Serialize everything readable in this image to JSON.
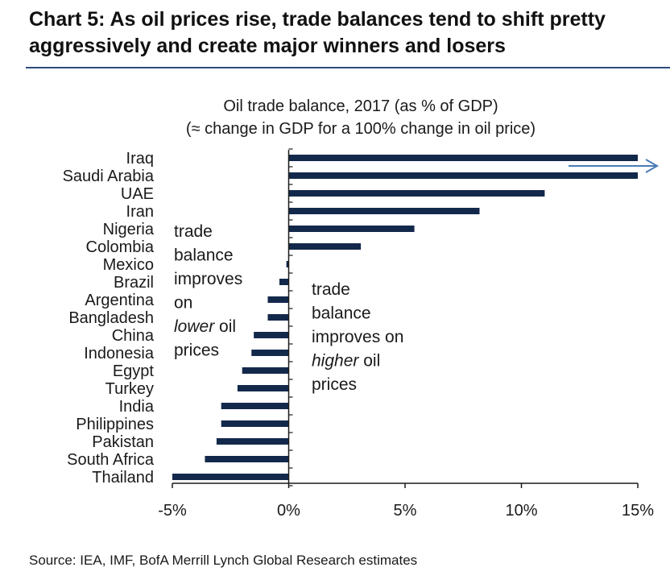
{
  "header": {
    "title": "Chart 5: As oil prices rise, trade balances tend to shift pretty aggressively and create major winners and losers"
  },
  "chart_data": {
    "type": "bar",
    "orientation": "horizontal",
    "title": "Oil trade balance, 2017 (as % of GDP)",
    "subtitle": "(≈ change in GDP for a 100% change in oil price)",
    "categories": [
      "Iraq",
      "Saudi Arabia",
      "UAE",
      "Iran",
      "Nigeria",
      "Colombia",
      "Mexico",
      "Brazil",
      "Argentina",
      "Bangladesh",
      "China",
      "Indonesia",
      "Egypt",
      "Turkey",
      "India",
      "Philippines",
      "Pakistan",
      "South Africa",
      "Thailand"
    ],
    "values": [
      15,
      15,
      11,
      8.2,
      5.4,
      3.1,
      -0.1,
      -0.4,
      -0.9,
      -0.9,
      -1.5,
      -1.6,
      -2.0,
      -2.2,
      -2.9,
      -2.9,
      -3.1,
      -3.6,
      -5.0
    ],
    "xlim": [
      -5,
      15
    ],
    "xticks": [
      -5,
      0,
      5,
      10,
      15
    ],
    "xtick_labels": [
      "-5%",
      "0%",
      "5%",
      "10%",
      "15%"
    ],
    "bar_color": "#13294b",
    "arrow_color": "#4a7bb5",
    "grid": false,
    "legend": "none",
    "annotations": {
      "left": [
        {
          "text": "trade"
        },
        {
          "text": "balance"
        },
        {
          "text": "improves"
        },
        {
          "text": "on"
        },
        {
          "text": "lower",
          "italic": true,
          "suffix": " oil"
        },
        {
          "text": "prices"
        }
      ],
      "right": [
        {
          "text": "trade"
        },
        {
          "text": "balance"
        },
        {
          "text": "improves on"
        },
        {
          "text": "higher",
          "italic": true,
          "suffix": " oil"
        },
        {
          "text": "prices"
        }
      ]
    }
  },
  "footer": {
    "source": "Source: IEA, IMF, BofA Merrill Lynch Global Research estimates"
  }
}
